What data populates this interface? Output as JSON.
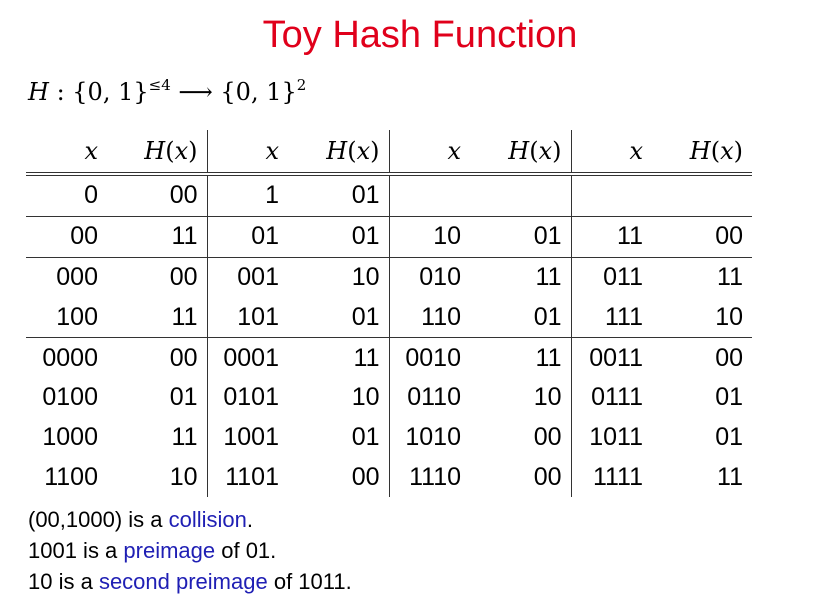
{
  "title": "Toy Hash Function",
  "formula": {
    "H": "H",
    "colon_set": " : {0, 1}",
    "exp1": "≤4",
    "arrow_set": " ⟶ {0, 1}",
    "exp2": "2"
  },
  "table": {
    "headers": [
      "x",
      "H(x)",
      "x",
      "H(x)",
      "x",
      "H(x)",
      "x",
      "H(x)"
    ],
    "rows": [
      [
        "0",
        "00",
        "1",
        "01",
        "",
        "",
        "",
        ""
      ],
      [
        "00",
        "11",
        "01",
        "01",
        "10",
        "01",
        "11",
        "00"
      ],
      [
        "000",
        "00",
        "001",
        "10",
        "010",
        "11",
        "011",
        "11"
      ],
      [
        "100",
        "11",
        "101",
        "01",
        "110",
        "01",
        "111",
        "10"
      ],
      [
        "0000",
        "00",
        "0001",
        "11",
        "0010",
        "11",
        "0011",
        "00"
      ],
      [
        "0100",
        "01",
        "0101",
        "10",
        "0110",
        "10",
        "0111",
        "01"
      ],
      [
        "1000",
        "11",
        "1001",
        "01",
        "1010",
        "00",
        "1011",
        "01"
      ],
      [
        "1100",
        "10",
        "1101",
        "00",
        "1110",
        "00",
        "1111",
        "11"
      ]
    ]
  },
  "notes": [
    {
      "pre": "(00,1000) is a ",
      "kw": "collision",
      "post": "."
    },
    {
      "pre": "1001 is a ",
      "kw": "preimage",
      "post": " of 01."
    },
    {
      "pre": "10 is a ",
      "kw": "second preimage",
      "post": " of 1011."
    }
  ],
  "colors": {
    "title": "#e0001b",
    "keyword": "#1f1fb4",
    "rules": "#333333"
  }
}
